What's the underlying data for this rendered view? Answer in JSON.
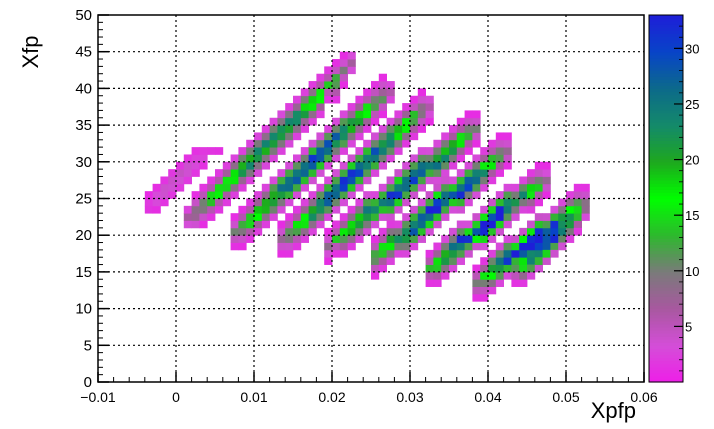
{
  "chart_data": {
    "type": "heatmap",
    "xlabel": "Xpfp",
    "ylabel": "Xfp",
    "xlim": [
      -0.01,
      0.06
    ],
    "ylim": [
      0,
      50
    ],
    "x_ticks": [
      -0.01,
      0,
      0.01,
      0.02,
      0.03,
      0.04,
      0.05,
      0.06
    ],
    "x_tick_labels": [
      "−0.01",
      "0",
      "0.01",
      "0.02",
      "0.03",
      "0.04",
      "0.05",
      "0.06"
    ],
    "y_ticks": [
      0,
      5,
      10,
      15,
      20,
      25,
      30,
      35,
      40,
      45,
      50
    ],
    "y_tick_labels": [
      "0",
      "5",
      "10",
      "15",
      "20",
      "25",
      "30",
      "35",
      "40",
      "45",
      "50"
    ],
    "grid": true,
    "colorbar": {
      "zlim": [
        0,
        33
      ],
      "ticks": [
        5,
        10,
        15,
        20,
        25,
        30
      ],
      "tick_labels": [
        "5",
        "10",
        "15",
        "20",
        "25",
        "30"
      ],
      "colors": [
        "#ee1ee8",
        "#d44ed8",
        "#a858a0",
        "#7a7a7a",
        "#2eb82e",
        "#00ff00",
        "#1ea81e",
        "#148a6a",
        "#0c6a8a",
        "#0844c8",
        "#1e1ed8"
      ]
    },
    "bin_width_x": 0.001,
    "bin_width_y": 1,
    "bands": [
      {
        "x_start": -0.004,
        "y_start": 23.5,
        "x_end": 0.0045,
        "y_end": 31.5,
        "peak": 4,
        "noise": 2
      },
      {
        "x_start": 0.0015,
        "y_start": 22,
        "x_end": 0.0225,
        "y_end": 43.5,
        "peak": 22,
        "noise": 3
      },
      {
        "x_start": 0.007,
        "y_start": 20,
        "x_end": 0.027,
        "y_end": 39.5,
        "peak": 27,
        "noise": 3
      },
      {
        "x_start": 0.0135,
        "y_start": 19,
        "x_end": 0.032,
        "y_end": 37.5,
        "peak": 28,
        "noise": 3
      },
      {
        "x_start": 0.0195,
        "y_start": 18.5,
        "x_end": 0.0385,
        "y_end": 34.5,
        "peak": 29,
        "noise": 3
      },
      {
        "x_start": 0.025,
        "y_start": 16.5,
        "x_end": 0.0425,
        "y_end": 31.5,
        "peak": 30,
        "noise": 3
      },
      {
        "x_start": 0.032,
        "y_start": 15,
        "x_end": 0.047,
        "y_end": 27.5,
        "peak": 32,
        "noise": 3
      },
      {
        "x_start": 0.0385,
        "y_start": 13.5,
        "x_end": 0.0525,
        "y_end": 24.5,
        "peak": 32,
        "noise": 3
      },
      {
        "x_start": 0.0435,
        "y_start": 15,
        "x_end": 0.052,
        "y_end": 23,
        "peak": 30,
        "noise": 2
      }
    ]
  }
}
